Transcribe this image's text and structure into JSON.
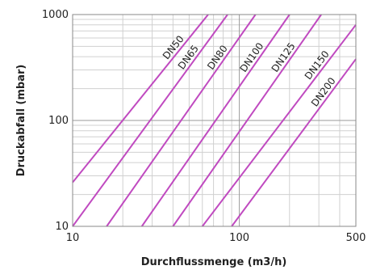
{
  "chart_data": {
    "type": "line",
    "xlabel": "Durchflussmenge (m3/h)",
    "ylabel": "Druckabfall (mbar)",
    "xscale": "log",
    "yscale": "log",
    "xlim": [
      10,
      500
    ],
    "ylim": [
      10,
      1000
    ],
    "grid": true,
    "x_ticks": [
      10,
      100,
      500
    ],
    "x_tick_labels": [
      "10",
      "100",
      "500"
    ],
    "y_ticks": [
      10,
      100,
      1000
    ],
    "y_tick_labels": [
      "10",
      "100",
      "1000"
    ],
    "line_color": "#c04ac0",
    "series": [
      {
        "name": "DN50",
        "x": [
          10,
          65
        ],
        "y": [
          26,
          1000
        ]
      },
      {
        "name": "DN65",
        "x": [
          10,
          85
        ],
        "y": [
          10,
          1000
        ]
      },
      {
        "name": "DN80",
        "x": [
          16,
          125
        ],
        "y": [
          10,
          1000
        ]
      },
      {
        "name": "DN100",
        "x": [
          26,
          200
        ],
        "y": [
          10,
          1000
        ]
      },
      {
        "name": "DN125",
        "x": [
          40,
          310
        ],
        "y": [
          10,
          1000
        ]
      },
      {
        "name": "DN150",
        "x": [
          60,
          500
        ],
        "y": [
          10,
          800
        ]
      },
      {
        "name": "DN200",
        "x": [
          90,
          500
        ],
        "y": [
          10,
          380
        ]
      }
    ]
  }
}
